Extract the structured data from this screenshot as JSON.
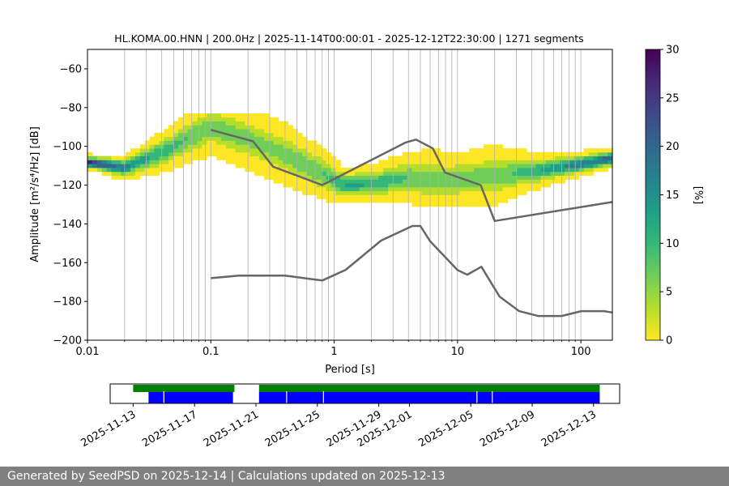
{
  "chart_data": {
    "type": "heatmap",
    "title": "HL.KOMA.00.HNN | 200.0Hz | 2025-11-14T00:00:01 - 2025-12-12T22:30:00 | 1271 segments",
    "xlabel": "Period [s]",
    "ylabel": "Amplitude [m²/s⁴/Hz] [dB]",
    "x_scale": "log",
    "xlim": [
      0.01,
      180
    ],
    "ylim": [
      -200,
      -50
    ],
    "x_ticks": [
      0.01,
      0.1,
      1,
      10,
      100
    ],
    "x_tick_labels": [
      "0.01",
      "0.1",
      "1",
      "10",
      "100"
    ],
    "y_ticks": [
      -200,
      -180,
      -160,
      -140,
      -120,
      -100,
      -80,
      -60
    ],
    "y_tick_labels": [
      "−200",
      "−180",
      "−160",
      "−140",
      "−120",
      "−100",
      "−80",
      "−60"
    ],
    "grid": "vertical",
    "colorbar": {
      "label": "[%]",
      "range": [
        0,
        30
      ],
      "ticks": [
        0,
        5,
        10,
        15,
        20,
        25,
        30
      ],
      "tick_labels": [
        "0",
        "5",
        "10",
        "15",
        "20",
        "25",
        "30"
      ],
      "colormap": [
        "#fde725",
        "#b5de2b",
        "#6ece58",
        "#35b779",
        "#1f9e89",
        "#26828e",
        "#31688e",
        "#3e4989",
        "#482878",
        "#440154"
      ]
    },
    "pdf_mode": [
      [
        0.01,
        -108
      ],
      [
        0.02,
        -111
      ],
      [
        0.04,
        -103
      ],
      [
        0.07,
        -95
      ],
      [
        0.1,
        -90
      ],
      [
        0.2,
        -96
      ],
      [
        0.4,
        -104
      ],
      [
        0.8,
        -114
      ],
      [
        1.2,
        -120
      ],
      [
        2,
        -119
      ],
      [
        4,
        -116
      ],
      [
        8,
        -118
      ],
      [
        10,
        -117
      ],
      [
        20,
        -115
      ],
      [
        50,
        -112
      ],
      [
        100,
        -109
      ],
      [
        180,
        -106
      ]
    ],
    "pdf_spread": [
      [
        0.01,
        3
      ],
      [
        0.02,
        5
      ],
      [
        0.04,
        8
      ],
      [
        0.07,
        10
      ],
      [
        0.1,
        11
      ],
      [
        0.2,
        12
      ],
      [
        0.4,
        12
      ],
      [
        0.8,
        10
      ],
      [
        1.2,
        7
      ],
      [
        2,
        7
      ],
      [
        4,
        10
      ],
      [
        7,
        12
      ],
      [
        10,
        10
      ],
      [
        20,
        12
      ],
      [
        30,
        9
      ],
      [
        60,
        6
      ],
      [
        100,
        5
      ],
      [
        180,
        4
      ]
    ],
    "noise_models": [
      {
        "name": "high noise model",
        "x": [
          0.1,
          0.22,
          0.32,
          0.8,
          3.8,
          4.6,
          6.3,
          7.9,
          15.4,
          20,
          180
        ],
        "y": [
          -91.5,
          -97.4,
          -110.5,
          -120,
          -98,
          -96.5,
          -101,
          -113.5,
          -120,
          -138.5,
          -128.7
        ]
      },
      {
        "name": "low noise model",
        "x": [
          0.1,
          0.17,
          0.4,
          0.8,
          1.24,
          2.4,
          4.3,
          5,
          6,
          10,
          12,
          15.6,
          21.9,
          31.6,
          45,
          70,
          101,
          154,
          180
        ],
        "y": [
          -168,
          -166.7,
          -166.7,
          -169.2,
          -163.7,
          -148.6,
          -141.1,
          -141.1,
          -149,
          -163.8,
          -166.2,
          -162.1,
          -177.5,
          -185,
          -187.5,
          -187.5,
          -185,
          -185,
          -185.7
        ]
      }
    ],
    "availability": {
      "tick_labels": [
        "2025-11-13",
        "2025-11-17",
        "2025-11-21",
        "2025-11-25",
        "2025-11-29",
        "2025-12-01",
        "2025-12-05",
        "2025-12-09",
        "2025-12-13"
      ],
      "tick_days": [
        0,
        4,
        8,
        12,
        16,
        18,
        22,
        26,
        30
      ],
      "range_days": [
        -1.5,
        31.7
      ],
      "used_segments": [
        [
          0,
          6.6
        ],
        [
          8.2,
          30.4
        ]
      ],
      "available_segments": [
        [
          1,
          6.5
        ],
        [
          8.2,
          30.4
        ]
      ],
      "gap_days": [
        2,
        10,
        12.4,
        22.4,
        23.4
      ],
      "used_color": "#008000",
      "available_color": "#0000ff"
    }
  },
  "footer": {
    "text": "Generated by SeedPSD on 2025-12-14 | Calculations updated on 2025-12-13"
  }
}
